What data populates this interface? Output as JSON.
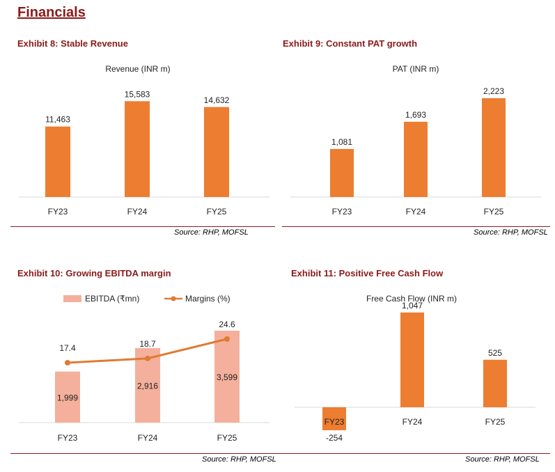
{
  "page": {
    "title": "Financials"
  },
  "colors": {
    "bar": "#ED7D31",
    "ebitda_bar": "#F4B09C",
    "margin_line": "#E07B33",
    "title": "#8B1A1A",
    "axis": "#D9D9D9"
  },
  "exhibits": [
    {
      "title": "Exhibit 8: Stable Revenue",
      "source": "Source: RHP, MOFSL"
    },
    {
      "title": "Exhibit 9: Constant PAT growth",
      "source": "Source: RHP, MOFSL"
    },
    {
      "title": "Exhibit 10: Growing EBITDA margin",
      "source": "Source: RHP, MOFSL"
    },
    {
      "title": "Exhibit 11: Positive Free Cash Flow",
      "source": "Source: RHP, MOFSL"
    }
  ],
  "chart_data": [
    {
      "type": "bar",
      "title": "Revenue  (INR m)",
      "categories": [
        "FY23",
        "FY24",
        "FY25"
      ],
      "series": [
        {
          "values": [
            11463,
            15583,
            14632
          ],
          "labels": [
            "11,463",
            "15,583",
            "14,632"
          ]
        }
      ],
      "ylim": [
        0,
        18000
      ],
      "grid": false
    },
    {
      "type": "bar",
      "title": "PAT  (INR m)",
      "categories": [
        "FY23",
        "FY24",
        "FY25"
      ],
      "series": [
        {
          "values": [
            1081,
            1693,
            2223
          ],
          "labels": [
            "1,081",
            "1,693",
            "2,223"
          ]
        }
      ],
      "ylim": [
        0,
        2600
      ],
      "grid": false
    },
    {
      "type": "bar",
      "title": "",
      "categories": [
        "FY23",
        "FY24",
        "FY25"
      ],
      "series": [
        {
          "name": "EBITDA (₹mn)",
          "kind": "bar",
          "values": [
            1999,
            2916,
            3599
          ],
          "labels": [
            "1,999",
            "2,916",
            "3,599"
          ]
        },
        {
          "name": "Margins (%)",
          "kind": "line",
          "values": [
            17.4,
            18.7,
            24.6
          ],
          "labels": [
            "17.4",
            "18.7",
            "24.6"
          ]
        }
      ],
      "legend": "top-center",
      "grid": false
    },
    {
      "type": "bar",
      "title": "Free Cash Flow (INR m)",
      "categories": [
        "FY23",
        "FY24",
        "FY25"
      ],
      "series": [
        {
          "values": [
            -254,
            1047,
            525
          ],
          "labels": [
            "-254",
            "1,047",
            "525"
          ]
        }
      ],
      "ylim": [
        -254,
        1300
      ],
      "grid": false
    }
  ]
}
